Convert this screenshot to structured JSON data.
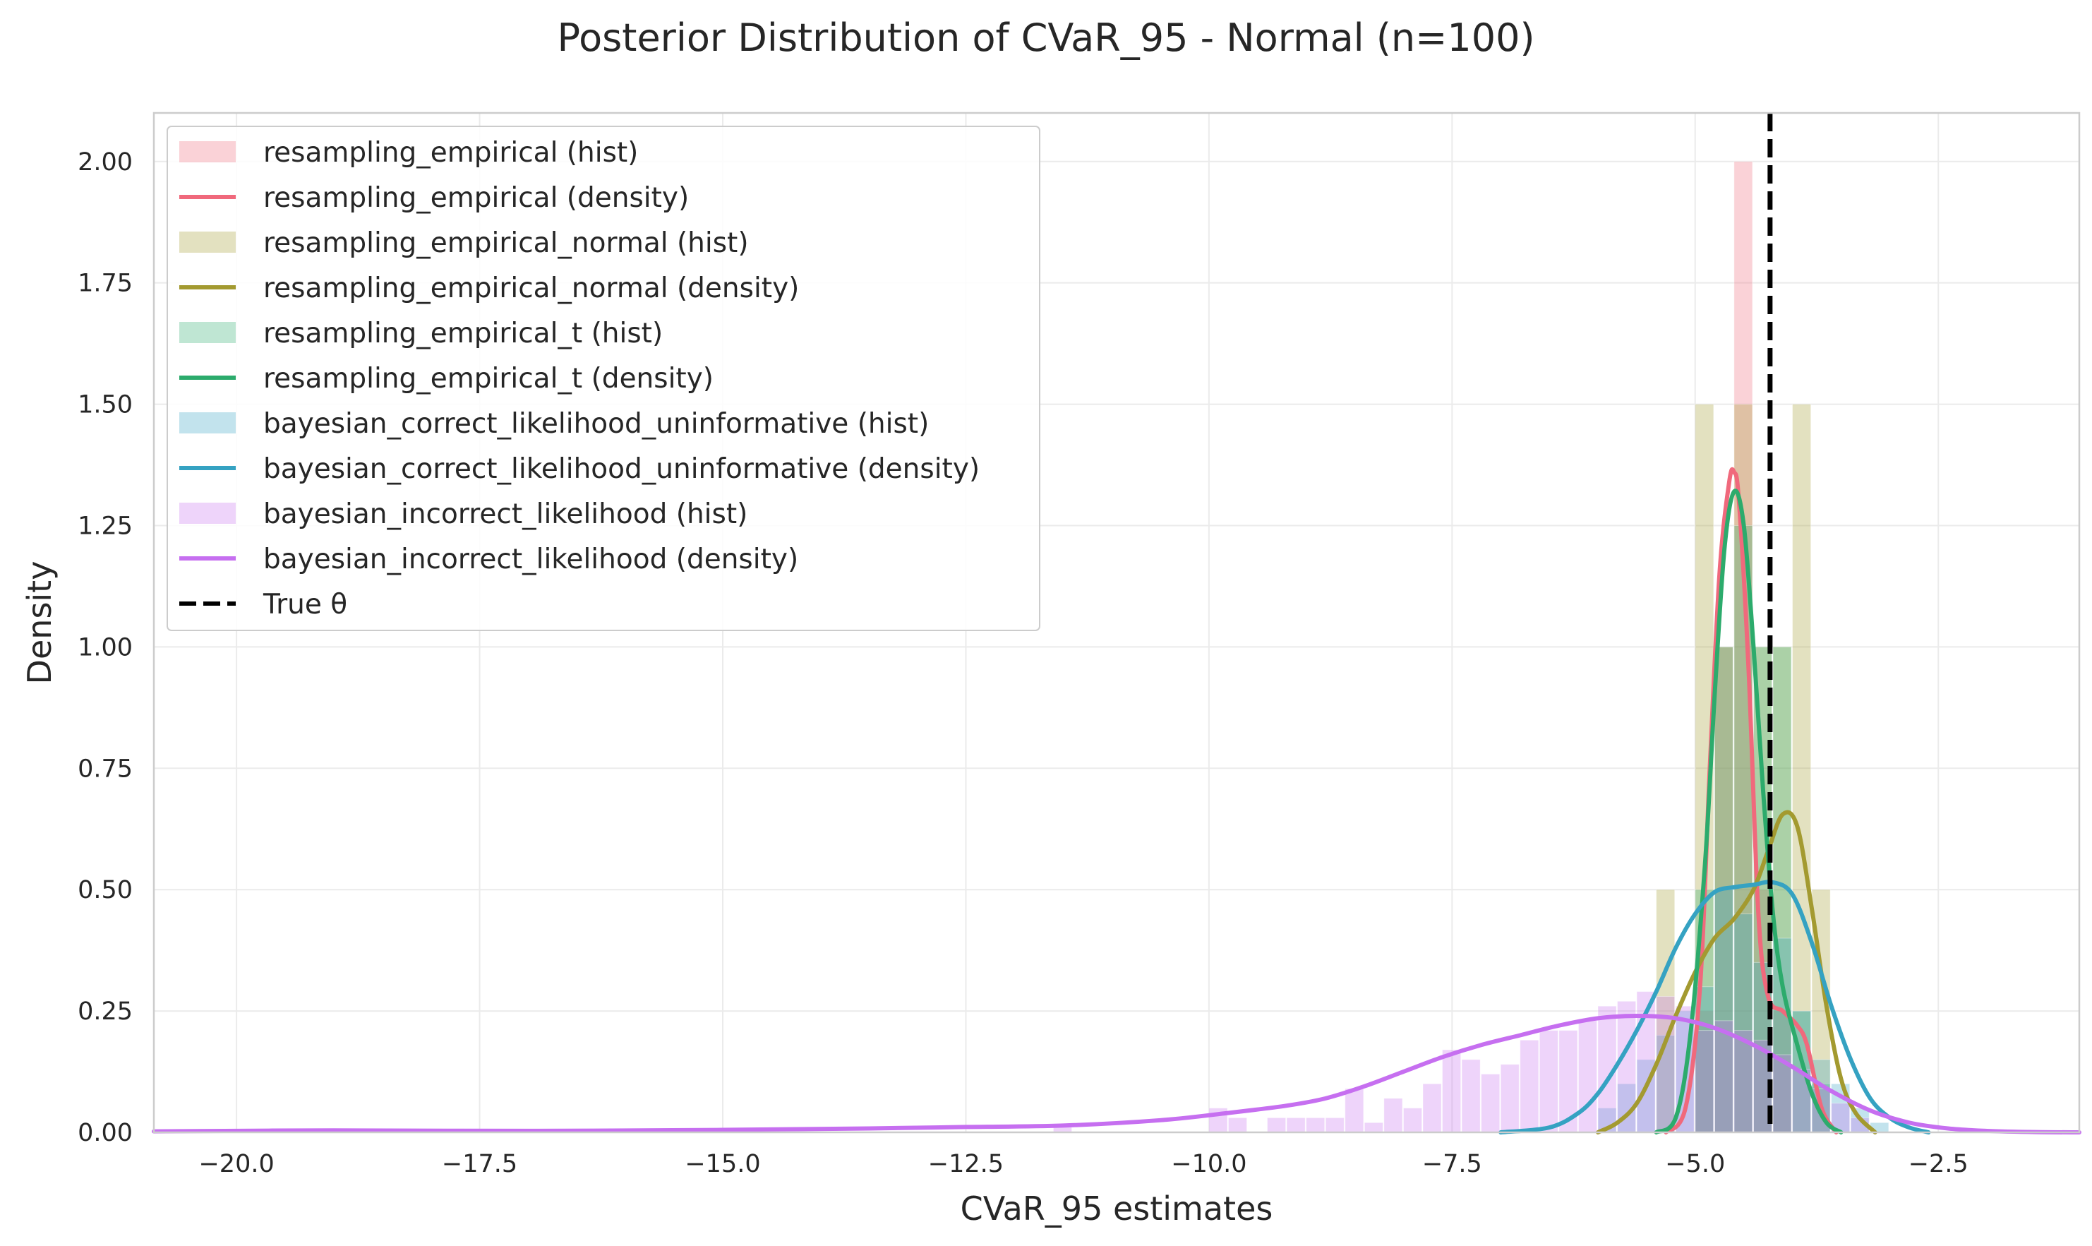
{
  "chart_data": {
    "type": "histogram+density",
    "title": "Posterior Distribution of CVaR_95 - Normal (n=100)",
    "xlabel": "CVaR_95 estimates",
    "ylabel": "Density",
    "xlim": [
      -20.85,
      -1.05
    ],
    "ylim": [
      0,
      2.1
    ],
    "xticks": [
      -20.0,
      -17.5,
      -15.0,
      -12.5,
      -10.0,
      -7.5,
      -5.0,
      -2.5
    ],
    "xtick_labels": [
      "−20.0",
      "−17.5",
      "−15.0",
      "−12.5",
      "−10.0",
      "−7.5",
      "−5.0",
      "−2.5"
    ],
    "yticks": [
      0.0,
      0.25,
      0.5,
      0.75,
      1.0,
      1.25,
      1.5,
      1.75,
      2.0
    ],
    "ytick_labels": [
      "0.00",
      "0.25",
      "0.50",
      "0.75",
      "1.00",
      "1.25",
      "1.50",
      "1.75",
      "2.00"
    ],
    "grid": true,
    "legend_position": "top-left",
    "true_theta": -4.23,
    "series": [
      {
        "name": "resampling_empirical",
        "color": "#f0697c",
        "hist_label": "resampling_empirical (hist)",
        "density_label": "resampling_empirical (density)",
        "hist": {
          "bin_width": 0.2,
          "bins": [
            {
              "x": -5.0,
              "y": 0.25
            },
            {
              "x": -4.8,
              "y": 1.0
            },
            {
              "x": -4.6,
              "y": 2.0
            },
            {
              "x": -4.4,
              "y": 0.5
            },
            {
              "x": -4.2,
              "y": 0.25
            }
          ]
        },
        "density": [
          [
            -5.3,
            0.0
          ],
          [
            -5.1,
            0.05
          ],
          [
            -4.95,
            0.3
          ],
          [
            -4.85,
            0.75
          ],
          [
            -4.75,
            1.15
          ],
          [
            -4.65,
            1.34
          ],
          [
            -4.6,
            1.36
          ],
          [
            -4.55,
            1.3
          ],
          [
            -4.45,
            0.95
          ],
          [
            -4.35,
            0.45
          ],
          [
            -4.25,
            0.28
          ],
          [
            -4.1,
            0.25
          ],
          [
            -3.95,
            0.22
          ],
          [
            -3.85,
            0.18
          ],
          [
            -3.7,
            0.05
          ],
          [
            -3.55,
            0.0
          ]
        ]
      },
      {
        "name": "resampling_empirical_normal",
        "color": "#a39a30",
        "hist_label": "resampling_empirical_normal (hist)",
        "density_label": "resampling_empirical_normal (density)",
        "hist": {
          "bin_width": 0.2,
          "bins": [
            {
              "x": -5.4,
              "y": 0.5
            },
            {
              "x": -5.0,
              "y": 1.5
            },
            {
              "x": -4.8,
              "y": 1.0
            },
            {
              "x": -4.6,
              "y": 1.5
            },
            {
              "x": -4.4,
              "y": 1.0
            },
            {
              "x": -4.2,
              "y": 1.0
            },
            {
              "x": -4.0,
              "y": 1.5
            },
            {
              "x": -3.8,
              "y": 0.5
            }
          ]
        },
        "density": [
          [
            -6.0,
            0.0
          ],
          [
            -5.8,
            0.02
          ],
          [
            -5.6,
            0.06
          ],
          [
            -5.4,
            0.14
          ],
          [
            -5.2,
            0.24
          ],
          [
            -5.0,
            0.33
          ],
          [
            -4.8,
            0.4
          ],
          [
            -4.6,
            0.44
          ],
          [
            -4.4,
            0.5
          ],
          [
            -4.25,
            0.58
          ],
          [
            -4.1,
            0.655
          ],
          [
            -3.95,
            0.63
          ],
          [
            -3.8,
            0.46
          ],
          [
            -3.65,
            0.26
          ],
          [
            -3.5,
            0.11
          ],
          [
            -3.35,
            0.04
          ],
          [
            -3.15,
            0.0
          ]
        ]
      },
      {
        "name": "resampling_empirical_t",
        "color": "#2cab6c",
        "hist_label": "resampling_empirical_t (hist)",
        "density_label": "resampling_empirical_t (density)",
        "hist": {
          "bin_width": 0.2,
          "bins": [
            {
              "x": -5.0,
              "y": 0.5
            },
            {
              "x": -4.8,
              "y": 1.0
            },
            {
              "x": -4.6,
              "y": 1.25
            },
            {
              "x": -4.4,
              "y": 1.0
            },
            {
              "x": -4.2,
              "y": 1.0
            },
            {
              "x": -4.0,
              "y": 0.25
            },
            {
              "x": -3.8,
              "y": 0.1
            }
          ]
        },
        "density": [
          [
            -5.4,
            0.0
          ],
          [
            -5.2,
            0.03
          ],
          [
            -5.05,
            0.2
          ],
          [
            -4.9,
            0.55
          ],
          [
            -4.8,
            0.9
          ],
          [
            -4.7,
            1.2
          ],
          [
            -4.6,
            1.32
          ],
          [
            -4.5,
            1.25
          ],
          [
            -4.4,
            1.0
          ],
          [
            -4.3,
            0.7
          ],
          [
            -4.2,
            0.45
          ],
          [
            -4.1,
            0.3
          ],
          [
            -3.95,
            0.18
          ],
          [
            -3.8,
            0.08
          ],
          [
            -3.65,
            0.02
          ],
          [
            -3.5,
            0.0
          ]
        ]
      },
      {
        "name": "bayesian_correct_likelihood_uninformative",
        "color": "#35a2c2",
        "hist_label": "bayesian_correct_likelihood_uninformative (hist)",
        "density_label": "bayesian_correct_likelihood_uninformative (density)",
        "hist": {
          "bin_width": 0.2,
          "bins": [
            {
              "x": -6.0,
              "y": 0.05
            },
            {
              "x": -5.8,
              "y": 0.1
            },
            {
              "x": -5.6,
              "y": 0.15
            },
            {
              "x": -5.4,
              "y": 0.2
            },
            {
              "x": -5.2,
              "y": 0.25
            },
            {
              "x": -5.0,
              "y": 0.3
            },
            {
              "x": -4.8,
              "y": 0.5
            },
            {
              "x": -4.6,
              "y": 0.45
            },
            {
              "x": -4.4,
              "y": 0.35
            },
            {
              "x": -4.2,
              "y": 0.4
            },
            {
              "x": -4.0,
              "y": 0.25
            },
            {
              "x": -3.8,
              "y": 0.15
            },
            {
              "x": -3.6,
              "y": 0.1
            },
            {
              "x": -3.4,
              "y": 0.05
            },
            {
              "x": -3.2,
              "y": 0.02
            }
          ]
        },
        "density": [
          [
            -7.0,
            0.0
          ],
          [
            -6.5,
            0.01
          ],
          [
            -6.2,
            0.04
          ],
          [
            -6.0,
            0.08
          ],
          [
            -5.8,
            0.14
          ],
          [
            -5.6,
            0.21
          ],
          [
            -5.4,
            0.29
          ],
          [
            -5.2,
            0.38
          ],
          [
            -5.0,
            0.45
          ],
          [
            -4.8,
            0.495
          ],
          [
            -4.6,
            0.505
          ],
          [
            -4.4,
            0.51
          ],
          [
            -4.2,
            0.515
          ],
          [
            -4.0,
            0.49
          ],
          [
            -3.8,
            0.39
          ],
          [
            -3.6,
            0.26
          ],
          [
            -3.4,
            0.15
          ],
          [
            -3.2,
            0.07
          ],
          [
            -3.0,
            0.03
          ],
          [
            -2.8,
            0.01
          ],
          [
            -2.6,
            0.0
          ]
        ]
      },
      {
        "name": "bayesian_incorrect_likelihood",
        "color": "#c66ff0",
        "hist_label": "bayesian_incorrect_likelihood (hist)",
        "density_label": "bayesian_incorrect_likelihood (density)",
        "hist": {
          "bin_width": 0.2,
          "bins": [
            {
              "x": -11.6,
              "y": 0.015
            },
            {
              "x": -10.0,
              "y": 0.05
            },
            {
              "x": -9.8,
              "y": 0.03
            },
            {
              "x": -9.4,
              "y": 0.03
            },
            {
              "x": -9.2,
              "y": 0.03
            },
            {
              "x": -9.0,
              "y": 0.03
            },
            {
              "x": -8.8,
              "y": 0.03
            },
            {
              "x": -8.6,
              "y": 0.09
            },
            {
              "x": -8.4,
              "y": 0.02
            },
            {
              "x": -8.2,
              "y": 0.07
            },
            {
              "x": -8.0,
              "y": 0.05
            },
            {
              "x": -7.8,
              "y": 0.1
            },
            {
              "x": -7.6,
              "y": 0.17
            },
            {
              "x": -7.4,
              "y": 0.15
            },
            {
              "x": -7.2,
              "y": 0.12
            },
            {
              "x": -7.0,
              "y": 0.14
            },
            {
              "x": -6.8,
              "y": 0.19
            },
            {
              "x": -6.6,
              "y": 0.21
            },
            {
              "x": -6.4,
              "y": 0.21
            },
            {
              "x": -6.2,
              "y": 0.23
            },
            {
              "x": -6.0,
              "y": 0.26
            },
            {
              "x": -5.8,
              "y": 0.27
            },
            {
              "x": -5.6,
              "y": 0.29
            },
            {
              "x": -5.4,
              "y": 0.28
            },
            {
              "x": -5.2,
              "y": 0.26
            },
            {
              "x": -5.0,
              "y": 0.21
            },
            {
              "x": -4.8,
              "y": 0.23
            },
            {
              "x": -4.6,
              "y": 0.21
            },
            {
              "x": -4.4,
              "y": 0.19
            },
            {
              "x": -4.2,
              "y": 0.16
            },
            {
              "x": -4.0,
              "y": 0.13
            },
            {
              "x": -3.8,
              "y": 0.09
            },
            {
              "x": -3.6,
              "y": 0.06
            },
            {
              "x": -3.4,
              "y": 0.03
            }
          ]
        },
        "density": [
          [
            -20.85,
            0.002
          ],
          [
            -19.0,
            0.004
          ],
          [
            -17.0,
            0.003
          ],
          [
            -15.0,
            0.005
          ],
          [
            -13.5,
            0.008
          ],
          [
            -12.5,
            0.011
          ],
          [
            -11.5,
            0.014
          ],
          [
            -10.5,
            0.025
          ],
          [
            -9.8,
            0.04
          ],
          [
            -9.2,
            0.055
          ],
          [
            -8.8,
            0.07
          ],
          [
            -8.4,
            0.095
          ],
          [
            -8.0,
            0.125
          ],
          [
            -7.6,
            0.155
          ],
          [
            -7.2,
            0.18
          ],
          [
            -6.8,
            0.2
          ],
          [
            -6.4,
            0.22
          ],
          [
            -6.0,
            0.235
          ],
          [
            -5.6,
            0.24
          ],
          [
            -5.2,
            0.235
          ],
          [
            -4.8,
            0.215
          ],
          [
            -4.4,
            0.18
          ],
          [
            -4.0,
            0.135
          ],
          [
            -3.6,
            0.085
          ],
          [
            -3.2,
            0.045
          ],
          [
            -2.8,
            0.02
          ],
          [
            -2.4,
            0.008
          ],
          [
            -2.0,
            0.003
          ],
          [
            -1.5,
            0.0005
          ],
          [
            -1.05,
            0.0
          ]
        ]
      }
    ]
  },
  "legend": {
    "true_theta_label": "True θ"
  }
}
